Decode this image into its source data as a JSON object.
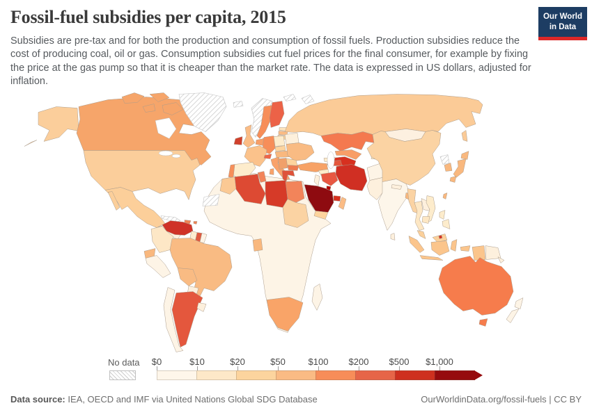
{
  "header": {
    "title": "Fossil-fuel subsidies per capita, 2015",
    "logo": {
      "line1": "Our World",
      "line2": "in Data",
      "bg_color": "#1d3d63",
      "accent_color": "#dc2828"
    }
  },
  "subtitle": "Subsidies are pre-tax and for both the production and consumption of fossil fuels. Production subsidies reduce the cost of producing coal, oil or gas. Consumption subsidies cut fuel prices for the final consumer, for example by fixing the price at the gas pump so that it is cheaper than the market rate. The data is expressed in US dollars, adjusted for inflation.",
  "chart_data": {
    "type": "choropleth",
    "title": "Fossil-fuel subsidies per capita, 2015",
    "legend": {
      "no_data_label": "No data",
      "tick_labels": [
        "$0",
        "$10",
        "$20",
        "$50",
        "$100",
        "$200",
        "$500",
        "$1,000"
      ],
      "bucket_colors": [
        "#fef6ea",
        "#fde8c8",
        "#fcd49e",
        "#fabb84",
        "#f78d59",
        "#e66548",
        "#ce301f",
        "#960b0e"
      ],
      "arrow_color": "#960b0e"
    },
    "countries": {
      "alaska": {
        "name": "United States (Alaska)",
        "fill": "#fbce9b"
      },
      "canada": {
        "name": "Canada",
        "fill": "#f6a56a"
      },
      "greenland": {
        "name": "Greenland",
        "fill": "nodata"
      },
      "usa": {
        "name": "United States",
        "fill": "#fbce9b"
      },
      "mexico": {
        "name": "Mexico",
        "fill": "#fccf9a"
      },
      "central_america": {
        "name": "Central America",
        "fill": "#fdf0dd"
      },
      "cuba": {
        "name": "Cuba",
        "fill": "nodata"
      },
      "hispaniola": {
        "name": "Haiti / Dominican Republic",
        "fill": "#ef8354"
      },
      "puerto_rico": {
        "name": "Puerto Rico",
        "fill": "#ef8354"
      },
      "venezuela": {
        "name": "Venezuela",
        "fill": "#cf3227"
      },
      "colombia": {
        "name": "Colombia",
        "fill": "#fde7c6"
      },
      "guyana": {
        "name": "Guyana",
        "fill": "#fdeccf"
      },
      "suriname": {
        "name": "Suriname",
        "fill": "#e05a40"
      },
      "french_guiana": {
        "name": "French Guiana",
        "fill": "#fdf4e6"
      },
      "ecuador": {
        "name": "Ecuador",
        "fill": "#f9b87e"
      },
      "peru": {
        "name": "Peru",
        "fill": "#fdf4e6"
      },
      "brazil": {
        "name": "Brazil",
        "fill": "#f9bb83"
      },
      "bolivia": {
        "name": "Bolivia",
        "fill": "#f9bb83"
      },
      "paraguay": {
        "name": "Paraguay",
        "fill": "#fdf0dd"
      },
      "argentina": {
        "name": "Argentina",
        "fill": "#e4573d"
      },
      "chile": {
        "name": "Chile",
        "fill": "#fdf4e6"
      },
      "uruguay": {
        "name": "Uruguay",
        "fill": "#fdf0dd"
      },
      "iceland": {
        "name": "Iceland",
        "fill": "nodata"
      },
      "norway": {
        "name": "Norway",
        "fill": "nodata"
      },
      "sweden": {
        "name": "Sweden",
        "fill": "#f78e59"
      },
      "finland": {
        "name": "Finland",
        "fill": "#ec6247"
      },
      "denmark": {
        "name": "Denmark",
        "fill": "#f78e59"
      },
      "estonia": {
        "name": "Estonia",
        "fill": "#fde3bd"
      },
      "latvia": {
        "name": "Latvia",
        "fill": "#fbbc85"
      },
      "lithuania": {
        "name": "Lithuania",
        "fill": "#fdd49e"
      },
      "belarus": {
        "name": "Belarus",
        "fill": "#fdf0dc"
      },
      "ireland": {
        "name": "Ireland",
        "fill": "#d1402c"
      },
      "uk": {
        "name": "United Kingdom",
        "fill": "#fbbc85"
      },
      "netherlands_belgium": {
        "name": "Netherlands / Belgium",
        "fill": "#f89e67"
      },
      "germany": {
        "name": "Germany",
        "fill": "#f78e59"
      },
      "poland": {
        "name": "Poland",
        "fill": "#fdeccc"
      },
      "france": {
        "name": "France",
        "fill": "#fbc28b"
      },
      "spain": {
        "name": "Spain",
        "fill": "#fdeccc"
      },
      "portugal": {
        "name": "Portugal",
        "fill": "#f78e59"
      },
      "switzerland": {
        "name": "Switzerland",
        "fill": "#ef6548"
      },
      "italy": {
        "name": "Italy",
        "fill": "#f9a26a"
      },
      "czechia": {
        "name": "Czechia",
        "fill": "#fdd49e"
      },
      "austria_hungary": {
        "name": "Austria / Hungary",
        "fill": "#f9b87e"
      },
      "ukraine": {
        "name": "Ukraine",
        "fill": "#f9bb83"
      },
      "romania": {
        "name": "Romania",
        "fill": "#fdd49e"
      },
      "balkans": {
        "name": "Serbia / Balkans",
        "fill": "#f0a06a"
      },
      "bulgaria": {
        "name": "Bulgaria",
        "fill": "#ef7c50"
      },
      "greece": {
        "name": "Greece",
        "fill": "#df523a"
      },
      "russia": {
        "name": "Russia",
        "fill": "#fbcb97"
      },
      "svalbard": {
        "name": "Svalbard",
        "fill": "nodata"
      },
      "novaya_zemlya": {
        "name": "Novaya Zemlya",
        "fill": "nodata"
      },
      "kazakhstan": {
        "name": "Kazakhstan",
        "fill": "#f4794f"
      },
      "uzbekistan": {
        "name": "Uzbekistan",
        "fill": "#f89e67"
      },
      "turkmenistan": {
        "name": "Turkmenistan",
        "fill": "#d7301f"
      },
      "kyrgyzstan": {
        "name": "Kyrgyzstan",
        "fill": "#fbbc85"
      },
      "tajikistan": {
        "name": "Tajikistan",
        "fill": "#fdeccc"
      },
      "turkey": {
        "name": "Turkey",
        "fill": "#f7a266"
      },
      "georgia": {
        "name": "Georgia",
        "fill": "#fdeccc"
      },
      "armenia": {
        "name": "Armenia",
        "fill": "#f89e67"
      },
      "azerbaijan": {
        "name": "Azerbaijan",
        "fill": "#e4573d"
      },
      "syria": {
        "name": "Syria",
        "fill": "#fdeccc"
      },
      "levant": {
        "name": "Jordan / Israel / Lebanon",
        "fill": "#fdf0dd"
      },
      "iraq": {
        "name": "Iraq",
        "fill": "#e85742"
      },
      "iran": {
        "name": "Iran",
        "fill": "#d02f23"
      },
      "saudi_arabia": {
        "name": "Saudi Arabia",
        "fill": "#8e0b10"
      },
      "kuwait": {
        "name": "Kuwait",
        "fill": "#b30000"
      },
      "qatar_uae": {
        "name": "Qatar / United Arab Emirates",
        "fill": "#d7301f"
      },
      "oman": {
        "name": "Oman",
        "fill": "#fbbc85"
      },
      "yemen": {
        "name": "Yemen",
        "fill": "#fdd49e"
      },
      "afghanistan": {
        "name": "Afghanistan",
        "fill": "#fdf4e6"
      },
      "pakistan": {
        "name": "Pakistan",
        "fill": "#fdf0dd"
      },
      "india": {
        "name": "India",
        "fill": "#fdf6ea"
      },
      "nepal": {
        "name": "Nepal",
        "fill": "#fdf0dd"
      },
      "bangladesh": {
        "name": "Bangladesh",
        "fill": "#f9b87e"
      },
      "sri_lanka": {
        "name": "Sri Lanka",
        "fill": "#fdf0dd"
      },
      "china": {
        "name": "China",
        "fill": "#fbd3a3"
      },
      "mongolia": {
        "name": "Mongolia",
        "fill": "#fdf0e0"
      },
      "myanmar": {
        "name": "Myanmar",
        "fill": "#fbd3a3"
      },
      "thailand": {
        "name": "Thailand",
        "fill": "#fde7c4"
      },
      "laos": {
        "name": "Laos",
        "fill": "#fdf0dd"
      },
      "vietnam": {
        "name": "Vietnam",
        "fill": "#fdeccc"
      },
      "cambodia": {
        "name": "Cambodia",
        "fill": "#fde7c4"
      },
      "malaysia": {
        "name": "Malaysia",
        "fill": "#fbd09b"
      },
      "brunei": {
        "name": "Brunei",
        "fill": "#d7301f"
      },
      "indonesia": {
        "name": "Indonesia",
        "fill": "#fbc58c"
      },
      "papua_new_guinea": {
        "name": "Papua New Guinea",
        "fill": "#fdf0dd"
      },
      "philippines": {
        "name": "Philippines",
        "fill": "#fdeccc"
      },
      "taiwan": {
        "name": "Taiwan",
        "fill": "#f9b87e"
      },
      "north_korea": {
        "name": "North Korea",
        "fill": "nodata"
      },
      "south_korea": {
        "name": "South Korea",
        "fill": "#f9b87e"
      },
      "japan": {
        "name": "Japan",
        "fill": "#f9b87e"
      },
      "australia": {
        "name": "Australia",
        "fill": "#f67c4c"
      },
      "new_zealand": {
        "name": "New Zealand",
        "fill": "#fdf4e6"
      },
      "morocco": {
        "name": "Morocco",
        "fill": "#fbc994"
      },
      "western_sahara": {
        "name": "Western Sahara",
        "fill": "nodata"
      },
      "algeria": {
        "name": "Algeria",
        "fill": "#dd4a33"
      },
      "tunisia": {
        "name": "Tunisia",
        "fill": "#f2845a"
      },
      "libya": {
        "name": "Libya",
        "fill": "#d63a28"
      },
      "egypt": {
        "name": "Egypt",
        "fill": "#f2845a"
      },
      "sudan": {
        "name": "Sudan",
        "fill": "#fbd3a3"
      },
      "africa_other": {
        "name": "Sub-Saharan Africa (other)",
        "fill": "#fdf4e6"
      },
      "gabon": {
        "name": "Gabon",
        "fill": "#f9b87e"
      },
      "south_africa": {
        "name": "South Africa",
        "fill": "#f9a468"
      },
      "madagascar": {
        "name": "Madagascar",
        "fill": "#fdf4e6"
      }
    }
  },
  "footer": {
    "source_label": "Data source:",
    "source_text": " IEA, OECD and IMF via United Nations Global SDG Database",
    "right_text": "OurWorldinData.org/fossil-fuels | CC BY"
  }
}
